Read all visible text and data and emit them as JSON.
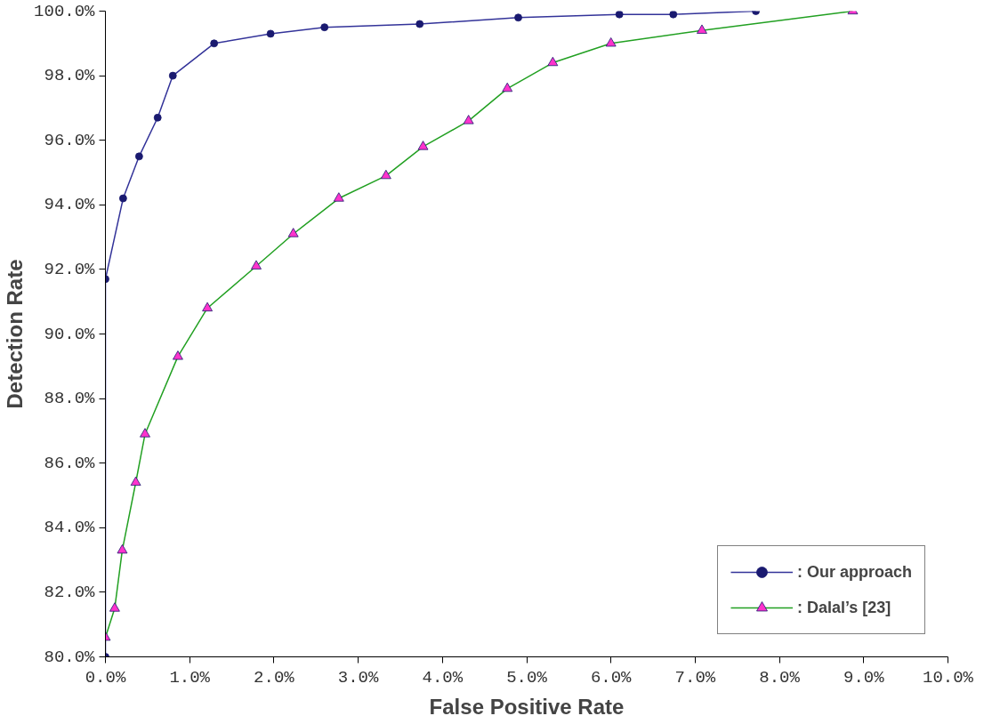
{
  "chart_data": {
    "type": "line",
    "xlabel": "False Positive Rate",
    "ylabel": "Detection Rate",
    "xlim": [
      0,
      10
    ],
    "ylim": [
      80,
      100
    ],
    "xticks": [
      {
        "value": 0,
        "label": "0.0%"
      },
      {
        "value": 1,
        "label": "1.0%"
      },
      {
        "value": 2,
        "label": "2.0%"
      },
      {
        "value": 3,
        "label": "3.0%"
      },
      {
        "value": 4,
        "label": "4.0%"
      },
      {
        "value": 5,
        "label": "5.0%"
      },
      {
        "value": 6,
        "label": "6.0%"
      },
      {
        "value": 7,
        "label": "7.0%"
      },
      {
        "value": 8,
        "label": "8.0%"
      },
      {
        "value": 9,
        "label": "9.0%"
      },
      {
        "value": 10,
        "label": "10.0%"
      }
    ],
    "yticks": [
      {
        "value": 80,
        "label": "80.0%"
      },
      {
        "value": 82,
        "label": "82.0%"
      },
      {
        "value": 84,
        "label": "84.0%"
      },
      {
        "value": 86,
        "label": "86.0%"
      },
      {
        "value": 88,
        "label": "88.0%"
      },
      {
        "value": 90,
        "label": "90.0%"
      },
      {
        "value": 92,
        "label": "92.0%"
      },
      {
        "value": 94,
        "label": "94.0%"
      },
      {
        "value": 96,
        "label": "96.0%"
      },
      {
        "value": 98,
        "label": "98.0%"
      },
      {
        "value": 100,
        "label": "100.0%"
      }
    ],
    "grid": false,
    "legend": "bottom right",
    "series": [
      {
        "name": ": Our approach",
        "color": "#333399",
        "marker": "circle",
        "colors": [
          "#1a1a70",
          "#1a1a70",
          "#1a1a70",
          "#1a1a70",
          "#1a1a70",
          "#1a1a70",
          "#1a1a70",
          "#1a1a70",
          "#1a1a70",
          "#1a1a70",
          "#1a1a70",
          "#1a1a70",
          "#1a1a70",
          "#1a1a70"
        ],
        "x": [
          0,
          0,
          0.21,
          0.4,
          0.62,
          0.8,
          1.29,
          1.96,
          2.6,
          3.73,
          4.9,
          6.1,
          6.74,
          7.72
        ],
        "values": [
          80,
          91.7,
          94.2,
          95.5,
          96.7,
          98.0,
          99.0,
          99.3,
          99.5,
          99.6,
          99.8,
          99.9,
          99.9,
          100.0
        ]
      },
      {
        "name": ": Dalal’s [23]",
        "color": "#22a022",
        "marker": "triangle",
        "colors": [
          "#ff33cc",
          "#ff33cc",
          "#ff33cc",
          "#ff33cc",
          "#ff33cc",
          "#ff33cc",
          "#ff33cc",
          "#ff33cc",
          "#ff33cc",
          "#ff33cc",
          "#ff33cc",
          "#ff33cc",
          "#ff33cc",
          "#ff33cc",
          "#ff33cc",
          "#ff33cc",
          "#ff33cc",
          "#ff33cc"
        ],
        "x": [
          0,
          0.11,
          0.2,
          0.36,
          0.47,
          0.86,
          1.21,
          1.79,
          2.23,
          2.77,
          3.33,
          3.77,
          4.31,
          4.77,
          5.31,
          6.0,
          7.08,
          8.87
        ],
        "values": [
          80.6,
          81.5,
          83.3,
          85.4,
          86.9,
          89.3,
          90.8,
          92.1,
          93.1,
          94.2,
          94.9,
          95.8,
          96.6,
          97.6,
          98.4,
          99.0,
          99.4,
          100.0
        ]
      }
    ]
  }
}
